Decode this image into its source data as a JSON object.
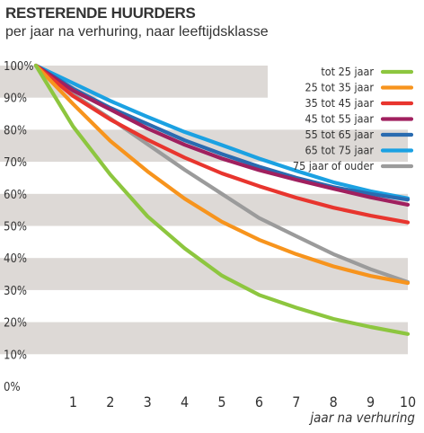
{
  "chart_data": {
    "type": "line",
    "title": "RESTERENDE HUURDERS",
    "subtitle": "per jaar na verhuring, naar leeftijdsklasse",
    "xlabel": "jaar na verhuring",
    "ylabel": "",
    "x": [
      0,
      1,
      2,
      3,
      4,
      5,
      6,
      7,
      8,
      9,
      10
    ],
    "x_tick_labels": [
      "1",
      "2",
      "3",
      "4",
      "5",
      "6",
      "7",
      "8",
      "9",
      "10"
    ],
    "y_tick_labels": [
      "0%",
      "10%",
      "20%",
      "30%",
      "40%",
      "50%",
      "60%",
      "70%",
      "80%",
      "90%",
      "100%"
    ],
    "ylim": [
      0,
      100
    ],
    "xlim": [
      0,
      10
    ],
    "grid": "alternating horizontal bands",
    "legend_position": "top-right",
    "series": [
      {
        "name": "tot 25 jaar",
        "color": "#8dc63f",
        "values": [
          100,
          81,
          66,
          53,
          43,
          34.5,
          28.5,
          24.5,
          21,
          18.5,
          16.3
        ]
      },
      {
        "name": "25 tot 35 jaar",
        "color": "#f7941d",
        "values": [
          100,
          88,
          76.5,
          67,
          58.5,
          51.3,
          45.7,
          41.2,
          37.4,
          34.4,
          32.2
        ]
      },
      {
        "name": "35 tot 45 jaar",
        "color": "#e8352e",
        "values": [
          100,
          90.5,
          83.2,
          76.9,
          71.3,
          66.4,
          62.4,
          58.8,
          55.7,
          53.2,
          51.1
        ]
      },
      {
        "name": "45 tot 55 jaar",
        "color": "#a0205f",
        "values": [
          100,
          92.2,
          86.3,
          80.4,
          75.3,
          71,
          67.4,
          64.4,
          61.6,
          58.9,
          56.6
        ]
      },
      {
        "name": "55 tot 65 jaar",
        "color": "#2a6bb0",
        "values": [
          100,
          92.8,
          86.8,
          81.8,
          76.7,
          72.4,
          68.5,
          65,
          62.1,
          60,
          58.2
        ]
      },
      {
        "name": "65 tot 75 jaar",
        "color": "#1ba1e2",
        "values": [
          100,
          94.5,
          89,
          84,
          79.3,
          75.2,
          71,
          67.2,
          63.6,
          60.8,
          58.6
        ]
      },
      {
        "name": "75 jaar of ouder",
        "color": "#9b9b9b",
        "values": [
          100,
          91,
          83.5,
          75.5,
          67.5,
          60,
          52.5,
          46.8,
          41.2,
          36.5,
          32.5
        ]
      }
    ]
  }
}
